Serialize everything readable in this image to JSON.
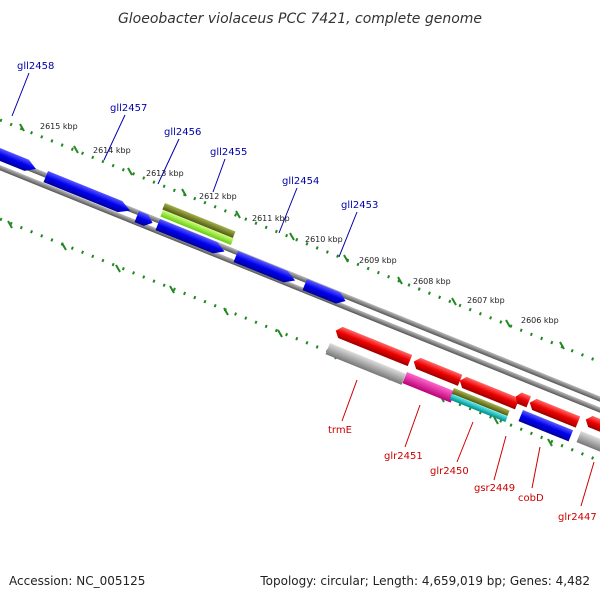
{
  "header": {
    "title": "Gloeobacter violaceus PCC 7421, complete genome"
  },
  "footer": {
    "accession": "Accession: NC_005125",
    "topology": "Topology: circular; Length: 4,659,019 bp; Genes: 4,482"
  },
  "axis": {
    "labels": [
      "2615 kbp",
      "2614 kbp",
      "2613 kbp",
      "2612 kbp",
      "2611 kbp",
      "2610 kbp",
      "2609 kbp",
      "2608 kbp",
      "2607 kbp",
      "2606 kbp"
    ]
  },
  "colors": {
    "forward_label": "#0000aa",
    "reverse_label": "#cc0000",
    "forward_gene": "#0000ee",
    "reverse_gene": "#ee0000",
    "backbone": "#888888",
    "ticks": "#228822",
    "olive": "#6b7a1e",
    "lime": "#99ee33",
    "magenta": "#ee1199",
    "cyan": "#11bbbb",
    "gray_gene": "#aaaaaa"
  },
  "forward_genes": [
    "gll2458",
    "gll2457",
    "gll2456",
    "gll2455",
    "gll2454",
    "gll2453"
  ],
  "reverse_genes": [
    "trmE",
    "glr2451",
    "glr2450",
    "gsr2449",
    "cobD",
    "glr2447"
  ]
}
